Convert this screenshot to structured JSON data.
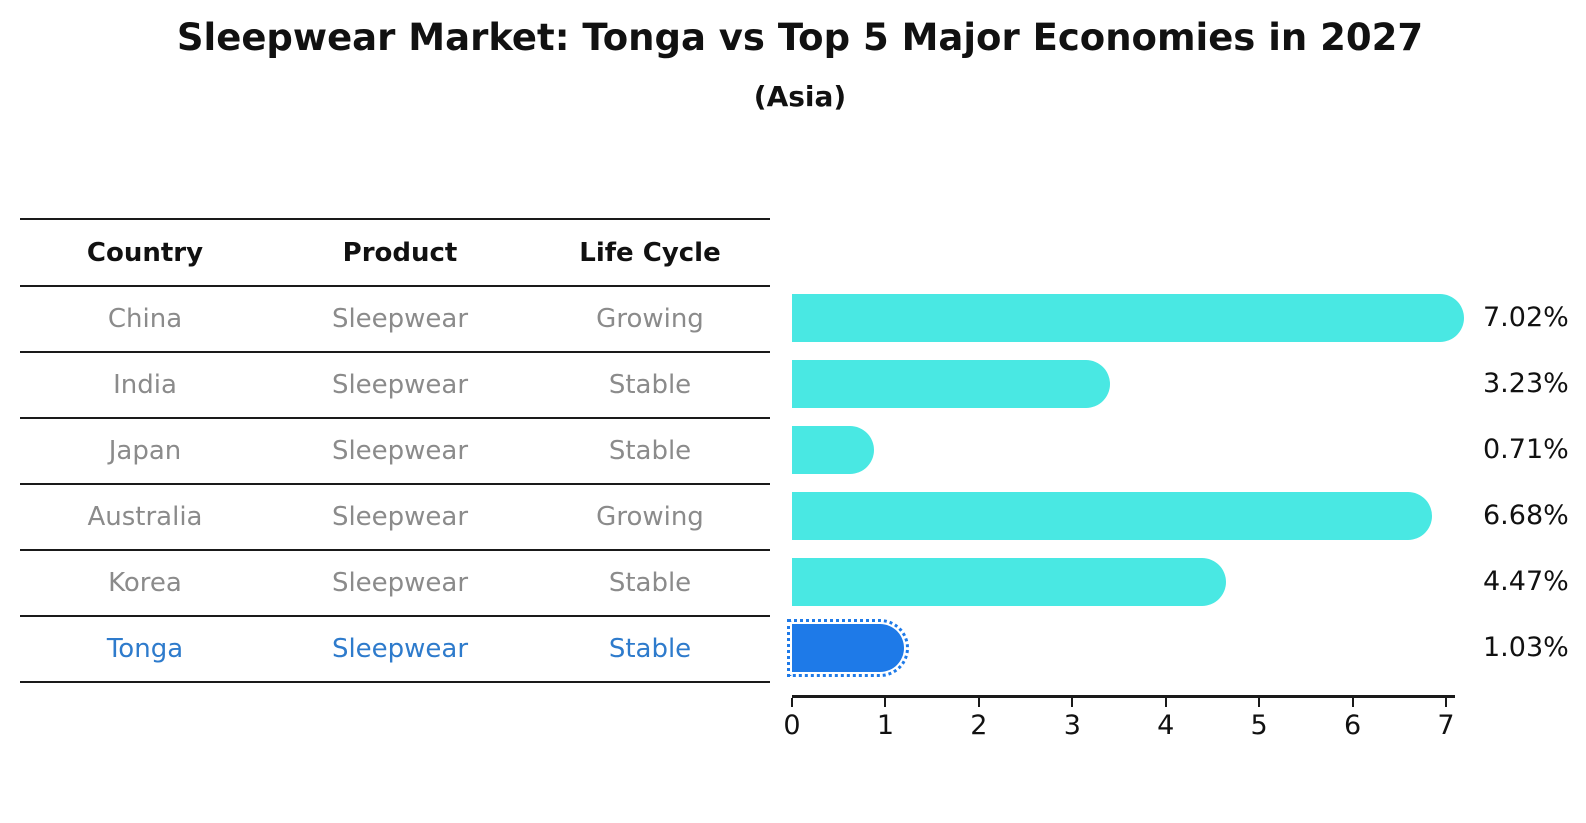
{
  "title": "Sleepwear Market: Tonga vs Top 5 Major Economies in 2027",
  "subtitle": "(Asia)",
  "table": {
    "headers": [
      "Country",
      "Product",
      "Life Cycle"
    ],
    "rows": [
      {
        "country": "China",
        "product": "Sleepwear",
        "life_cycle": "Growing",
        "highlighted": false
      },
      {
        "country": "India",
        "product": "Sleepwear",
        "life_cycle": "Stable",
        "highlighted": false
      },
      {
        "country": "Japan",
        "product": "Sleepwear",
        "life_cycle": "Stable",
        "highlighted": false
      },
      {
        "country": "Australia",
        "product": "Sleepwear",
        "life_cycle": "Growing",
        "highlighted": false
      },
      {
        "country": "Korea",
        "product": "Sleepwear",
        "life_cycle": "Stable",
        "highlighted": false
      },
      {
        "country": "Tonga",
        "product": "Sleepwear",
        "life_cycle": "Stable",
        "highlighted": true
      }
    ]
  },
  "chart_data": {
    "type": "bar",
    "orientation": "horizontal",
    "title": "Sleepwear Market: Tonga vs Top 5 Major Economies in 2027",
    "subtitle": "(Asia)",
    "categories": [
      "China",
      "India",
      "Japan",
      "Australia",
      "Korea",
      "Tonga"
    ],
    "values": [
      7.02,
      3.23,
      0.71,
      6.68,
      4.47,
      1.03
    ],
    "value_labels": [
      "7.02%",
      "3.23%",
      "0.71%",
      "6.68%",
      "4.47%",
      "1.03%"
    ],
    "unit": "%",
    "xlim": [
      0,
      7.1
    ],
    "xticks": [
      0,
      1,
      2,
      3,
      4,
      5,
      6,
      7
    ],
    "highlight_index": 5,
    "grid": false,
    "legend": false,
    "colors": {
      "bar": "#49e8e3",
      "highlight_bar": "#1e7ae8",
      "highlight_text": "#2e7bcc",
      "table_text": "#8b8b8b",
      "axis": "#1a1a1a"
    }
  }
}
